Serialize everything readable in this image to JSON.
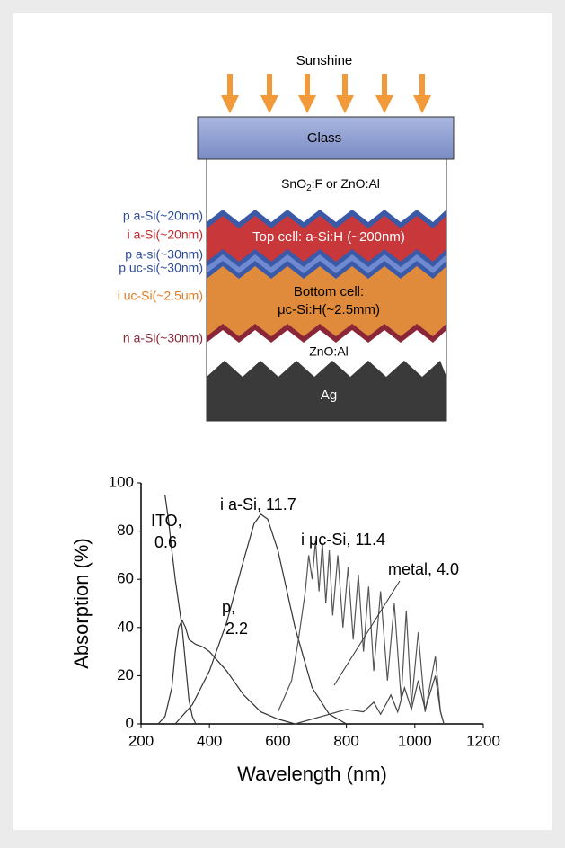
{
  "diagram": {
    "sunshine": "Sunshine",
    "glass": "Glass",
    "tco": [
      "SnO",
      "2",
      ":F or ZnO:Al"
    ],
    "top_cell": "Top cell: a-Si:H (~200nm)",
    "bottom_cell": [
      "Bottom cell:",
      "μc-Si:H(~2.5mm)"
    ],
    "back_tco": "ZnO:Al",
    "metal": "Ag",
    "layer_labels": [
      {
        "text": "p a-Si(~20nm)",
        "color": "#2b4a9c"
      },
      {
        "text": "i a-Si(~20nm)",
        "color": "#c42a2e"
      },
      {
        "text": "p a-si(~30nm)",
        "color": "#2b4a9c"
      },
      {
        "text": "p uc-si(~30nm)",
        "color": "#2b4a9c"
      },
      {
        "text": "i uc-Si(~2.5um)",
        "color": "#e07b22"
      },
      {
        "text": "n a-Si(~30nm)",
        "color": "#8a2638"
      }
    ]
  },
  "chart_data": {
    "type": "line",
    "xlabel": "Wavelength (nm)",
    "ylabel": "Absorption (%)",
    "xlim": [
      200,
      1200
    ],
    "ylim": [
      0,
      100
    ],
    "xticks": [
      200,
      400,
      600,
      800,
      1000,
      1200
    ],
    "yticks": [
      0,
      20,
      40,
      60,
      80,
      100
    ],
    "annotations": [
      [
        "ITO,",
        "0.6"
      ],
      [
        "p,",
        "2.2"
      ],
      [
        "i a-Si, 11.7"
      ],
      [
        "i μc-Si, 11.4"
      ],
      [
        "metal, 4.0"
      ]
    ],
    "series": [
      {
        "color": "#333333",
        "x": [
          270,
          280,
          290,
          300,
          310,
          320,
          330,
          340,
          350,
          360
        ],
        "values": [
          95,
          85,
          72,
          60,
          50,
          40,
          25,
          10,
          3,
          0
        ]
      },
      {
        "color": "#333333",
        "x": [
          250,
          270,
          290,
          300,
          310,
          320,
          330,
          340,
          360,
          380,
          400,
          450,
          500,
          550,
          600,
          650
        ],
        "values": [
          0,
          3,
          15,
          30,
          40,
          43,
          40,
          35,
          33,
          32,
          30,
          22,
          12,
          5,
          2,
          0
        ]
      },
      {
        "color": "#333333",
        "x": [
          300,
          350,
          400,
          450,
          500,
          530,
          550,
          570,
          600,
          650,
          700,
          750,
          800
        ],
        "values": [
          0,
          8,
          22,
          42,
          68,
          83,
          87,
          85,
          72,
          40,
          15,
          4,
          0
        ]
      },
      {
        "color": "#555555",
        "x": [
          600,
          640,
          660,
          680,
          690,
          700,
          710,
          720,
          730,
          740,
          750,
          760,
          775,
          790,
          805,
          820,
          835,
          850,
          865,
          880,
          900,
          920,
          940,
          960,
          975,
          990,
          1010,
          1030,
          1060,
          1075,
          1085
        ],
        "values": [
          5,
          18,
          35,
          55,
          70,
          60,
          76,
          55,
          75,
          50,
          72,
          45,
          70,
          40,
          65,
          35,
          62,
          30,
          57,
          22,
          55,
          18,
          50,
          10,
          47,
          8,
          38,
          5,
          28,
          5,
          0
        ]
      },
      {
        "color": "#444444",
        "x": [
          650,
          700,
          750,
          800,
          850,
          880,
          900,
          930,
          950,
          970,
          990,
          1010,
          1030,
          1060,
          1075,
          1085
        ],
        "values": [
          0,
          2,
          4,
          6,
          5,
          9,
          4,
          12,
          5,
          15,
          6,
          18,
          6,
          20,
          5,
          0
        ]
      }
    ]
  }
}
